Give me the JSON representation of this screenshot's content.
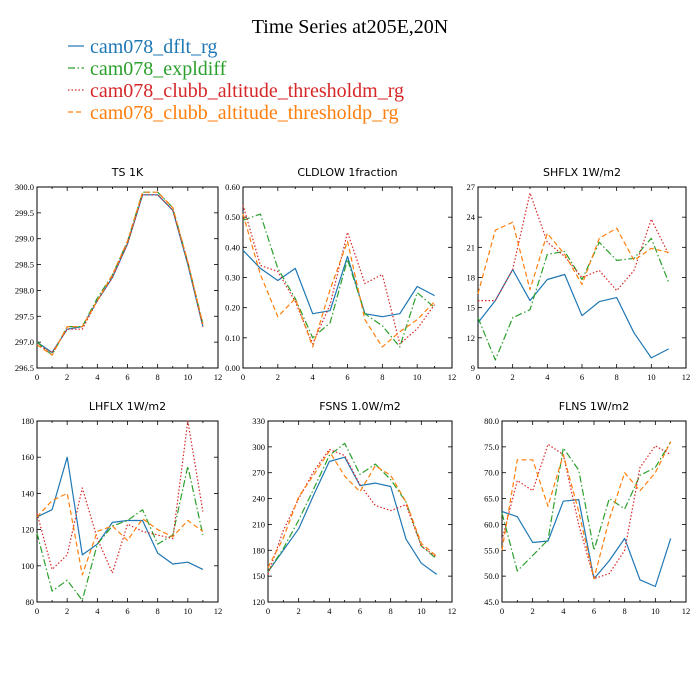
{
  "title": "Time Series at205E,20N",
  "legend": [
    {
      "label": "cam078_dflt_rg",
      "color": "#1f77b4",
      "dash": "solid"
    },
    {
      "label": "cam078_expldiff",
      "color": "#2ca02c",
      "dash": "dashdot"
    },
    {
      "label": "cam078_clubb_altitude_thresholdm_rg",
      "color": "#d62728",
      "dash": "dotted"
    },
    {
      "label": "cam078_clubb_altitude_thresholdp_rg",
      "color": "#ff7f0e",
      "dash": "dashed"
    }
  ],
  "chart_data": [
    {
      "type": "line",
      "title": "TS   1K",
      "x": [
        0,
        1,
        2,
        3,
        4,
        5,
        6,
        7,
        8,
        9,
        10,
        11
      ],
      "xlim": [
        0,
        12
      ],
      "xticks": [
        0,
        2,
        4,
        6,
        8,
        10,
        12
      ],
      "ylim": [
        296.5,
        300.0
      ],
      "yticks": [
        296.5,
        297.0,
        297.5,
        298.0,
        298.5,
        299.0,
        299.5,
        300.0
      ],
      "ytick_labels": [
        "296.5",
        "297.0",
        "297.5",
        "298.0",
        "298.5",
        "299.0",
        "299.5",
        "300.0"
      ],
      "series": [
        {
          "name": "cam078_dflt_rg",
          "values": [
            297.0,
            296.8,
            297.25,
            297.3,
            297.8,
            298.25,
            298.9,
            299.85,
            299.85,
            299.55,
            298.5,
            297.3
          ]
        },
        {
          "name": "cam078_expldiff",
          "values": [
            297.0,
            296.75,
            297.3,
            297.3,
            297.85,
            298.3,
            298.95,
            299.9,
            299.9,
            299.6,
            298.55,
            297.35
          ]
        },
        {
          "name": "cam078_clubb_altitude_thresholdm_rg",
          "values": [
            296.95,
            296.8,
            297.25,
            297.25,
            297.8,
            298.25,
            298.9,
            299.85,
            299.85,
            299.55,
            298.55,
            297.3
          ]
        },
        {
          "name": "cam078_clubb_altitude_thresholdp_rg",
          "values": [
            296.95,
            296.75,
            297.3,
            297.3,
            297.8,
            298.3,
            298.95,
            299.9,
            299.9,
            299.6,
            298.55,
            297.35
          ]
        }
      ]
    },
    {
      "type": "line",
      "title": "CLDLOW   1fraction",
      "x": [
        0,
        1,
        2,
        3,
        4,
        5,
        6,
        7,
        8,
        9,
        10,
        11
      ],
      "xlim": [
        0,
        12
      ],
      "xticks": [
        0,
        2,
        4,
        6,
        8,
        10,
        12
      ],
      "ylim": [
        0.0,
        0.6
      ],
      "yticks": [
        0.0,
        0.1,
        0.2,
        0.3,
        0.4,
        0.5,
        0.6
      ],
      "ytick_labels": [
        "0.00",
        "0.10",
        "0.20",
        "0.30",
        "0.40",
        "0.50",
        "0.60"
      ],
      "series": [
        {
          "name": "cam078_dflt_rg",
          "values": [
            0.39,
            0.33,
            0.29,
            0.33,
            0.18,
            0.19,
            0.37,
            0.18,
            0.17,
            0.18,
            0.27,
            0.24
          ]
        },
        {
          "name": "cam078_expldiff",
          "values": [
            0.49,
            0.51,
            0.33,
            0.23,
            0.1,
            0.15,
            0.36,
            0.18,
            0.14,
            0.07,
            0.25,
            0.2
          ]
        },
        {
          "name": "cam078_clubb_altitude_thresholdm_rg",
          "values": [
            0.54,
            0.34,
            0.32,
            0.22,
            0.08,
            0.21,
            0.45,
            0.28,
            0.31,
            0.08,
            0.13,
            0.21
          ]
        },
        {
          "name": "cam078_clubb_altitude_thresholdp_rg",
          "values": [
            0.51,
            0.31,
            0.17,
            0.23,
            0.07,
            0.26,
            0.42,
            0.16,
            0.07,
            0.12,
            0.16,
            0.22
          ]
        }
      ]
    },
    {
      "type": "line",
      "title": "SHFLX   1W/m2",
      "x": [
        0,
        1,
        2,
        3,
        4,
        5,
        6,
        7,
        8,
        9,
        10,
        11
      ],
      "xlim": [
        0,
        12
      ],
      "xticks": [
        0,
        2,
        4,
        6,
        8,
        10,
        12
      ],
      "ylim": [
        9,
        27
      ],
      "yticks": [
        9,
        12,
        15,
        18,
        21,
        24,
        27
      ],
      "ytick_labels": [
        "9",
        "12",
        "15",
        "18",
        "21",
        "24",
        "27"
      ],
      "series": [
        {
          "name": "cam078_dflt_rg",
          "values": [
            13.5,
            15.7,
            18.8,
            15.7,
            17.8,
            18.3,
            14.2,
            15.6,
            16.0,
            12.5,
            10.0,
            10.9
          ]
        },
        {
          "name": "cam078_expldiff",
          "values": [
            14.0,
            9.8,
            14.0,
            14.8,
            20.3,
            20.6,
            17.8,
            21.5,
            19.7,
            19.9,
            21.9,
            17.5
          ]
        },
        {
          "name": "cam078_clubb_altitude_thresholdm_rg",
          "values": [
            15.7,
            15.7,
            18.8,
            26.4,
            21.5,
            20.1,
            18.0,
            18.7,
            16.7,
            18.7,
            23.8,
            20.3
          ]
        },
        {
          "name": "cam078_clubb_altitude_thresholdp_rg",
          "values": [
            16.4,
            22.7,
            23.5,
            16.8,
            22.4,
            20.3,
            17.3,
            21.9,
            22.9,
            19.7,
            20.9,
            20.5
          ]
        }
      ]
    },
    {
      "type": "line",
      "title": "LHFLX   1W/m2",
      "x": [
        0,
        1,
        2,
        3,
        4,
        5,
        6,
        7,
        8,
        9,
        10,
        11
      ],
      "xlim": [
        0,
        12
      ],
      "xticks": [
        0,
        2,
        4,
        6,
        8,
        10,
        12
      ],
      "ylim": [
        80,
        180
      ],
      "yticks": [
        80,
        100,
        120,
        140,
        160,
        180
      ],
      "ytick_labels": [
        "80",
        "100",
        "120",
        "140",
        "160",
        "180"
      ],
      "series": [
        {
          "name": "cam078_dflt_rg",
          "values": [
            127,
            131,
            160,
            106,
            112,
            124,
            125,
            125,
            107,
            101,
            102,
            98
          ]
        },
        {
          "name": "cam078_expldiff",
          "values": [
            118,
            86,
            92,
            81,
            112,
            122,
            125,
            131,
            112,
            117,
            155,
            117
          ]
        },
        {
          "name": "cam078_clubb_altitude_thresholdm_rg",
          "values": [
            129,
            98,
            106,
            143,
            115,
            96,
            123,
            119,
            117,
            115,
            180,
            130
          ]
        },
        {
          "name": "cam078_clubb_altitude_thresholdp_rg",
          "values": [
            127,
            136,
            140,
            95,
            119,
            122,
            114,
            126,
            120,
            116,
            125,
            119
          ]
        }
      ]
    },
    {
      "type": "line",
      "title": "FSNS   1.0W/m2",
      "x": [
        0,
        1,
        2,
        3,
        4,
        5,
        6,
        7,
        8,
        9,
        10,
        11
      ],
      "xlim": [
        0,
        12
      ],
      "xticks": [
        0,
        2,
        4,
        6,
        8,
        10,
        12
      ],
      "ylim": [
        120,
        330
      ],
      "yticks": [
        120,
        150,
        180,
        210,
        240,
        270,
        300,
        330
      ],
      "ytick_labels": [
        "120",
        "150",
        "180",
        "210",
        "240",
        "270",
        "300",
        "330"
      ],
      "series": [
        {
          "name": "cam078_dflt_rg",
          "values": [
            155,
            180,
            205,
            245,
            283,
            288,
            255,
            258,
            254,
            193,
            165,
            152
          ]
        },
        {
          "name": "cam078_expldiff",
          "values": [
            155,
            182,
            215,
            252,
            290,
            304,
            268,
            280,
            262,
            236,
            185,
            170
          ]
        },
        {
          "name": "cam078_clubb_altitude_thresholdm_rg",
          "values": [
            152,
            203,
            240,
            272,
            297,
            290,
            256,
            232,
            226,
            233,
            185,
            172
          ]
        },
        {
          "name": "cam078_clubb_altitude_thresholdp_rg",
          "values": [
            160,
            194,
            242,
            268,
            295,
            266,
            248,
            278,
            267,
            236,
            188,
            173
          ]
        }
      ]
    },
    {
      "type": "line",
      "title": "FLNS   1W/m2",
      "x": [
        0,
        1,
        2,
        3,
        4,
        5,
        6,
        7,
        8,
        9,
        10,
        11
      ],
      "xlim": [
        0,
        12
      ],
      "xticks": [
        0,
        2,
        4,
        6,
        8,
        10,
        12
      ],
      "ylim": [
        45.0,
        80.0
      ],
      "yticks": [
        45,
        50,
        55,
        60,
        65,
        70,
        75,
        80
      ],
      "ytick_labels": [
        "45.0",
        "50.0",
        "55.0",
        "60.0",
        "65.0",
        "70.0",
        "75.0",
        "80.0"
      ],
      "series": [
        {
          "name": "cam078_dflt_rg",
          "values": [
            62.5,
            61.5,
            56.5,
            56.8,
            64.5,
            64.8,
            49.5,
            53.0,
            57.3,
            49.3,
            48.0,
            57.3
          ]
        },
        {
          "name": "cam078_expldiff",
          "values": [
            62.2,
            51.0,
            54.0,
            57.0,
            74.8,
            70.5,
            55.0,
            65.0,
            63.0,
            69.5,
            71.0,
            76.0
          ]
        },
        {
          "name": "cam078_clubb_altitude_thresholdm_rg",
          "values": [
            57.0,
            68.5,
            66.5,
            75.5,
            73.5,
            60.0,
            49.5,
            50.5,
            55.0,
            71.0,
            75.2,
            73.5
          ]
        },
        {
          "name": "cam078_clubb_altitude_thresholdp_rg",
          "values": [
            55.0,
            72.5,
            72.5,
            63.5,
            73.5,
            62.5,
            49.5,
            61.0,
            70.0,
            66.5,
            70.0,
            76.0
          ]
        }
      ]
    }
  ]
}
